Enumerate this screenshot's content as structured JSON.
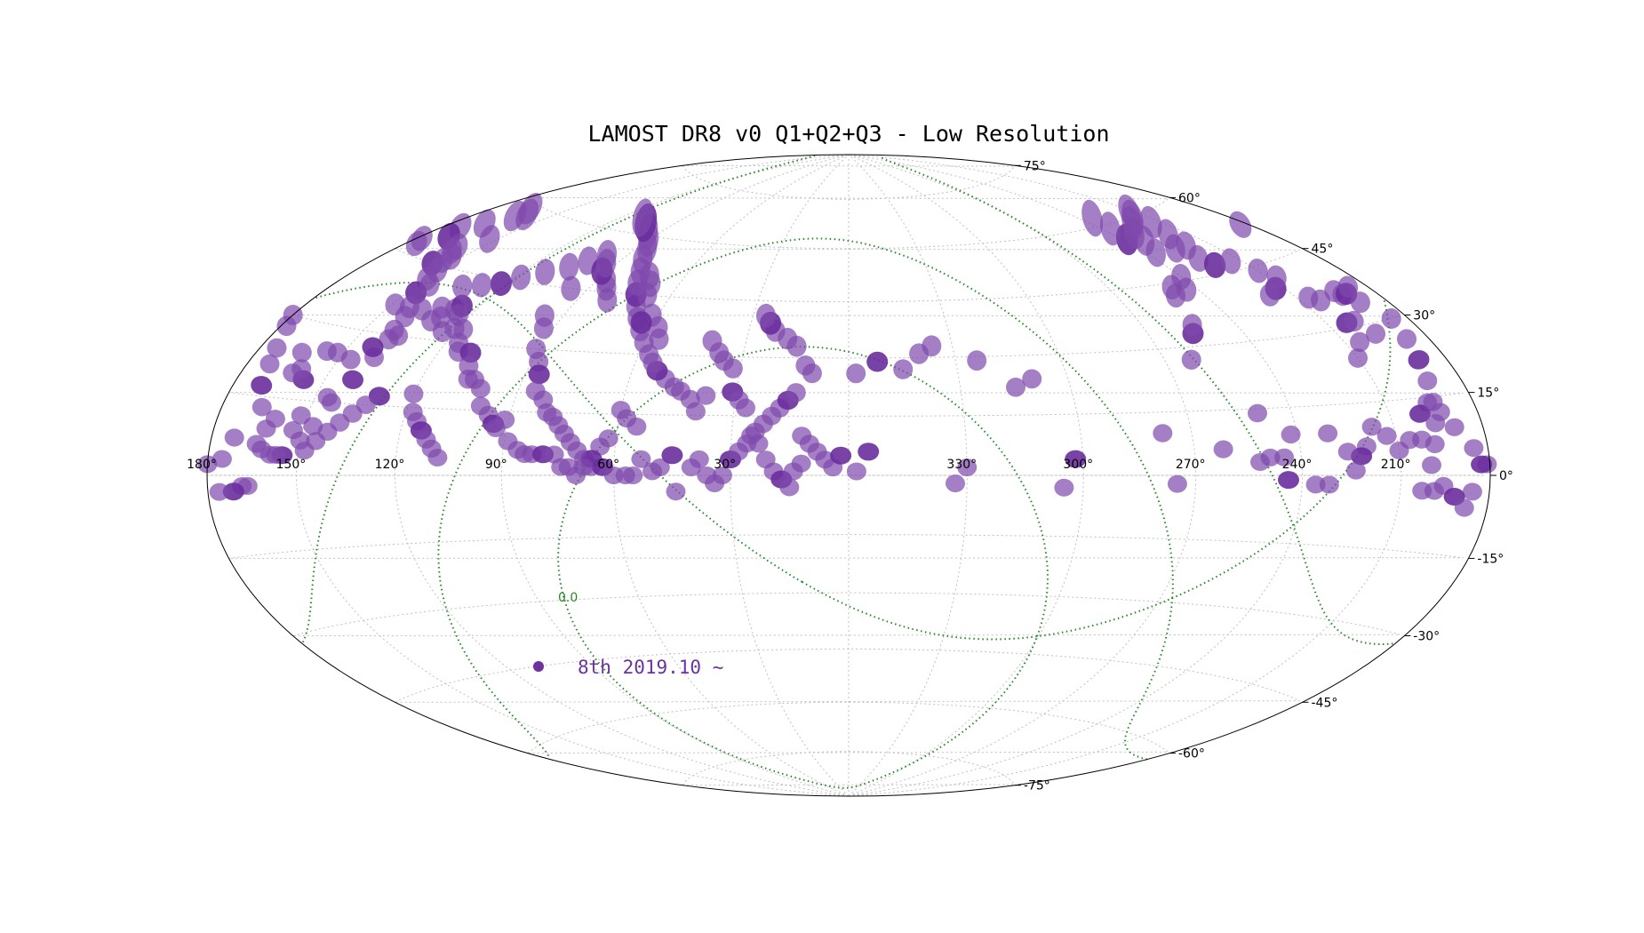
{
  "chart_data": {
    "type": "scatter",
    "title": "LAMOST DR8 v0 Q1+Q2+Q3 - Low Resolution",
    "projection": "aitoff / hammer all-sky, RA decreasing to the right",
    "lon_ticks": [
      "330°",
      "300°",
      "270°",
      "240°",
      "210°",
      "180°",
      "150°",
      "120°",
      "90°",
      "60°",
      "30°"
    ],
    "lon_tick_values": [
      330,
      300,
      270,
      240,
      210,
      180,
      150,
      120,
      90,
      60,
      30
    ],
    "lat_ticks": [
      "75°",
      "60°",
      "45°",
      "30°",
      "15°",
      "0°",
      "-15°",
      "-30°",
      "-45°",
      "-60°",
      "-75°"
    ],
    "lat_tick_values": [
      75,
      60,
      45,
      30,
      15,
      0,
      -15,
      -30,
      -45,
      -60,
      -75
    ],
    "grid": true,
    "legend": {
      "label": "8th 2019.10 ~",
      "placement": "lower-left",
      "color": "#6a33a0"
    },
    "curve_label": "0.0",
    "colors": {
      "field": "#7f49ad",
      "field_dark": "#6a2d9d",
      "galactic": "#228b22",
      "grid": "#c0c0c0",
      "frame": "#000000"
    },
    "series": [
      {
        "name": "8th 2019.10 ~",
        "ra_dec": [
          [
            302,
            4
          ],
          [
            305,
            -3
          ],
          [
            278,
            10
          ],
          [
            275,
            -2
          ],
          [
            252,
            3
          ],
          [
            250,
            14
          ],
          [
            262,
            27
          ],
          [
            256,
            33
          ],
          [
            254,
            35
          ],
          [
            250,
            42
          ],
          [
            248,
            44
          ],
          [
            244,
            43
          ],
          [
            240,
            46
          ],
          [
            236,
            52
          ],
          [
            238,
            56
          ],
          [
            232,
            55
          ],
          [
            230,
            57
          ],
          [
            234,
            62
          ],
          [
            236,
            59
          ],
          [
            226,
            52
          ],
          [
            224,
            49
          ],
          [
            222,
            47
          ],
          [
            220,
            52
          ],
          [
            218,
            55
          ],
          [
            222,
            59
          ],
          [
            216,
            60
          ],
          [
            214,
            58
          ],
          [
            212,
            61
          ],
          [
            213,
            40
          ],
          [
            218,
            39
          ],
          [
            214,
            47
          ],
          [
            210,
            44
          ],
          [
            207,
            42
          ],
          [
            206,
            37
          ],
          [
            203,
            36
          ],
          [
            203,
            31
          ],
          [
            205,
            27
          ],
          [
            210,
            24
          ],
          [
            200,
            31
          ],
          [
            197,
            28
          ],
          [
            194,
            37
          ],
          [
            193,
            36
          ],
          [
            191,
            36
          ],
          [
            190,
            34
          ],
          [
            187,
            37
          ],
          [
            183,
            52
          ],
          [
            178,
            48
          ],
          [
            176,
            47
          ],
          [
            174,
            52
          ],
          [
            170,
            50
          ],
          [
            168,
            54
          ],
          [
            166,
            59
          ],
          [
            164,
            57
          ],
          [
            161,
            58
          ],
          [
            159,
            49
          ],
          [
            158,
            48
          ],
          [
            157,
            45
          ],
          [
            155,
            46
          ],
          [
            154,
            47
          ],
          [
            153,
            52
          ],
          [
            151,
            44
          ],
          [
            149,
            36
          ],
          [
            150,
            42
          ],
          [
            147,
            39
          ],
          [
            146,
            41
          ],
          [
            143,
            36
          ],
          [
            141,
            34
          ],
          [
            139,
            29
          ],
          [
            137,
            30
          ],
          [
            139,
            25
          ],
          [
            141,
            20
          ],
          [
            144,
            15
          ],
          [
            146,
            16
          ],
          [
            147,
            10
          ],
          [
            150,
            7
          ],
          [
            152,
            12
          ],
          [
            153,
            9
          ],
          [
            155,
            4
          ],
          [
            157,
            4
          ],
          [
            159,
            4
          ],
          [
            162,
            5
          ],
          [
            164,
            6
          ],
          [
            166,
            -2
          ],
          [
            168,
            -2
          ],
          [
            171,
            -3
          ],
          [
            176,
            -3
          ],
          [
            181,
            2
          ],
          [
            185,
            5
          ],
          [
            190,
            9
          ],
          [
            193,
            12
          ],
          [
            196,
            14
          ],
          [
            200,
            12
          ],
          [
            202,
            7
          ],
          [
            206,
            7
          ],
          [
            210,
            5
          ],
          [
            213,
            8
          ],
          [
            217,
            10
          ],
          [
            220,
            6
          ],
          [
            222,
            4
          ],
          [
            226,
            5
          ],
          [
            231,
            9
          ],
          [
            242,
            9
          ],
          [
            245,
            4
          ],
          [
            249,
            4
          ],
          [
            262,
            6
          ],
          [
            244,
            -1
          ],
          [
            236,
            -2
          ],
          [
            232,
            -2
          ],
          [
            224,
            1
          ],
          [
            203,
            -3
          ],
          [
            199,
            -3
          ],
          [
            186,
            -3
          ],
          [
            183,
            2
          ],
          [
            180,
            2
          ],
          [
            175,
            3
          ],
          [
            172,
            7
          ],
          [
            166,
            13
          ],
          [
            162,
            9
          ],
          [
            160,
            11
          ],
          [
            157,
            19
          ],
          [
            160,
            21
          ],
          [
            164,
            24
          ],
          [
            162,
            20
          ],
          [
            156,
            25
          ],
          [
            152,
            25
          ],
          [
            146,
            24
          ],
          [
            142,
            27
          ],
          [
            140,
            31
          ],
          [
            138,
            36
          ],
          [
            132,
            37
          ],
          [
            131,
            34
          ],
          [
            129,
            35
          ],
          [
            127,
            37
          ],
          [
            126,
            38
          ],
          [
            124,
            36
          ],
          [
            124,
            32
          ],
          [
            121,
            33
          ],
          [
            118,
            33
          ],
          [
            116,
            30
          ],
          [
            114,
            28
          ],
          [
            110,
            28
          ],
          [
            108,
            25
          ],
          [
            106,
            22
          ],
          [
            104,
            22
          ],
          [
            101,
            20
          ],
          [
            99,
            16
          ],
          [
            96,
            14
          ],
          [
            94,
            12
          ],
          [
            93,
            11
          ],
          [
            91,
            13
          ],
          [
            89,
            8
          ],
          [
            86,
            6
          ],
          [
            84,
            5
          ],
          [
            82,
            5
          ],
          [
            79,
            5
          ],
          [
            76,
            5
          ],
          [
            74,
            2
          ],
          [
            72,
            2
          ],
          [
            70,
            0
          ],
          [
            68,
            4
          ],
          [
            66,
            2
          ],
          [
            63,
            2
          ],
          [
            60,
            0
          ],
          [
            57,
            0
          ],
          [
            55,
            0
          ],
          [
            53,
            4
          ],
          [
            50,
            1
          ],
          [
            48,
            2
          ],
          [
            45,
            5
          ],
          [
            44,
            -4
          ],
          [
            40,
            2
          ],
          [
            38,
            4
          ],
          [
            36,
            0
          ],
          [
            34,
            -2
          ],
          [
            32,
            0
          ],
          [
            30,
            4
          ],
          [
            28,
            6
          ],
          [
            26,
            8
          ],
          [
            24,
            11
          ],
          [
            22,
            13
          ],
          [
            20,
            15
          ],
          [
            18,
            17
          ],
          [
            16,
            19
          ],
          [
            14,
            21
          ],
          [
            12,
            10
          ],
          [
            10,
            8
          ],
          [
            8,
            6
          ],
          [
            6,
            4
          ],
          [
            4,
            2
          ],
          [
            2,
            5
          ],
          [
            38,
            20
          ],
          [
            40,
            16
          ],
          [
            42,
            19
          ],
          [
            45,
            21
          ],
          [
            47,
            22
          ],
          [
            50,
            24
          ],
          [
            53,
            26
          ],
          [
            55,
            28
          ],
          [
            57,
            30
          ],
          [
            60,
            33
          ],
          [
            63,
            36
          ],
          [
            66,
            39
          ],
          [
            69,
            42
          ],
          [
            72,
            45
          ],
          [
            75,
            48
          ],
          [
            78,
            51
          ],
          [
            82,
            54
          ],
          [
            86,
            57
          ],
          [
            90,
            59
          ],
          [
            96,
            61
          ],
          [
            104,
            63
          ],
          [
            110,
            64
          ],
          [
            98,
            54
          ],
          [
            102,
            52
          ],
          [
            106,
            50
          ],
          [
            112,
            48
          ],
          [
            118,
            46
          ],
          [
            122,
            44
          ],
          [
            128,
            43
          ],
          [
            134,
            42
          ],
          [
            40,
            34
          ],
          [
            37,
            31
          ],
          [
            35,
            29
          ],
          [
            32,
            27
          ],
          [
            31,
            21
          ],
          [
            29,
            19
          ],
          [
            27,
            17
          ],
          [
            25,
            10
          ],
          [
            23,
            8
          ],
          [
            21,
            4
          ],
          [
            19,
            1
          ],
          [
            17,
            -1
          ],
          [
            15,
            -3
          ],
          [
            14,
            1
          ],
          [
            12,
            3
          ],
          [
            56,
            34
          ],
          [
            58,
            37
          ],
          [
            62,
            40
          ],
          [
            64,
            38
          ],
          [
            68,
            45
          ],
          [
            70,
            48
          ],
          [
            73,
            50
          ],
          [
            80,
            43
          ],
          [
            84,
            46
          ],
          [
            87,
            48
          ],
          [
            92,
            50
          ],
          [
            94,
            52
          ],
          [
            96,
            45
          ],
          [
            96,
            38
          ],
          [
            93,
            35
          ],
          [
            91,
            30
          ],
          [
            88,
            27
          ],
          [
            86,
            24
          ],
          [
            85,
            20
          ],
          [
            82,
            18
          ],
          [
            80,
            15
          ],
          [
            120,
            18
          ],
          [
            118,
            14
          ],
          [
            116,
            12
          ],
          [
            114,
            10
          ],
          [
            112,
            8
          ],
          [
            110,
            6
          ],
          [
            108,
            4
          ],
          [
            330,
            2
          ],
          [
            333,
            -2
          ],
          [
            358,
            26
          ],
          [
            352,
            29
          ],
          [
            345,
            27
          ],
          [
            340,
            31
          ],
          [
            336,
            33
          ],
          [
            324,
            29
          ],
          [
            315,
            22
          ],
          [
            310,
            24
          ],
          [
            355,
            6
          ],
          [
            358,
            1
          ],
          [
            12,
            28
          ],
          [
            10,
            26
          ],
          [
            15,
            33
          ],
          [
            18,
            35
          ],
          [
            22,
            37
          ],
          [
            24,
            39
          ],
          [
            26,
            41
          ],
          [
            55,
            12
          ],
          [
            58,
            14
          ],
          [
            60,
            16
          ],
          [
            62,
            9
          ],
          [
            64,
            7
          ],
          [
            66,
            4
          ],
          [
            68,
            2
          ],
          [
            70,
            6
          ],
          [
            72,
            8
          ],
          [
            74,
            10
          ],
          [
            76,
            12
          ],
          [
            78,
            14
          ],
          [
            130,
            17
          ],
          [
            133,
            15
          ],
          [
            136,
            13
          ],
          [
            139,
            11
          ],
          [
            142,
            9
          ],
          [
            145,
            7
          ],
          [
            148,
            5
          ],
          [
            170,
            17
          ],
          [
            172,
            21
          ],
          [
            174,
            24
          ],
          [
            178,
            28
          ],
          [
            180,
            30
          ],
          [
            186,
            30
          ],
          [
            188,
            26
          ],
          [
            190,
            22
          ],
          [
            192,
            18
          ],
          [
            194,
            14
          ],
          [
            196,
            10
          ],
          [
            198,
            6
          ],
          [
            200,
            2
          ],
          [
            196,
            -2
          ],
          [
            192,
            -4
          ],
          [
            188,
            -6
          ]
        ]
      }
    ]
  }
}
